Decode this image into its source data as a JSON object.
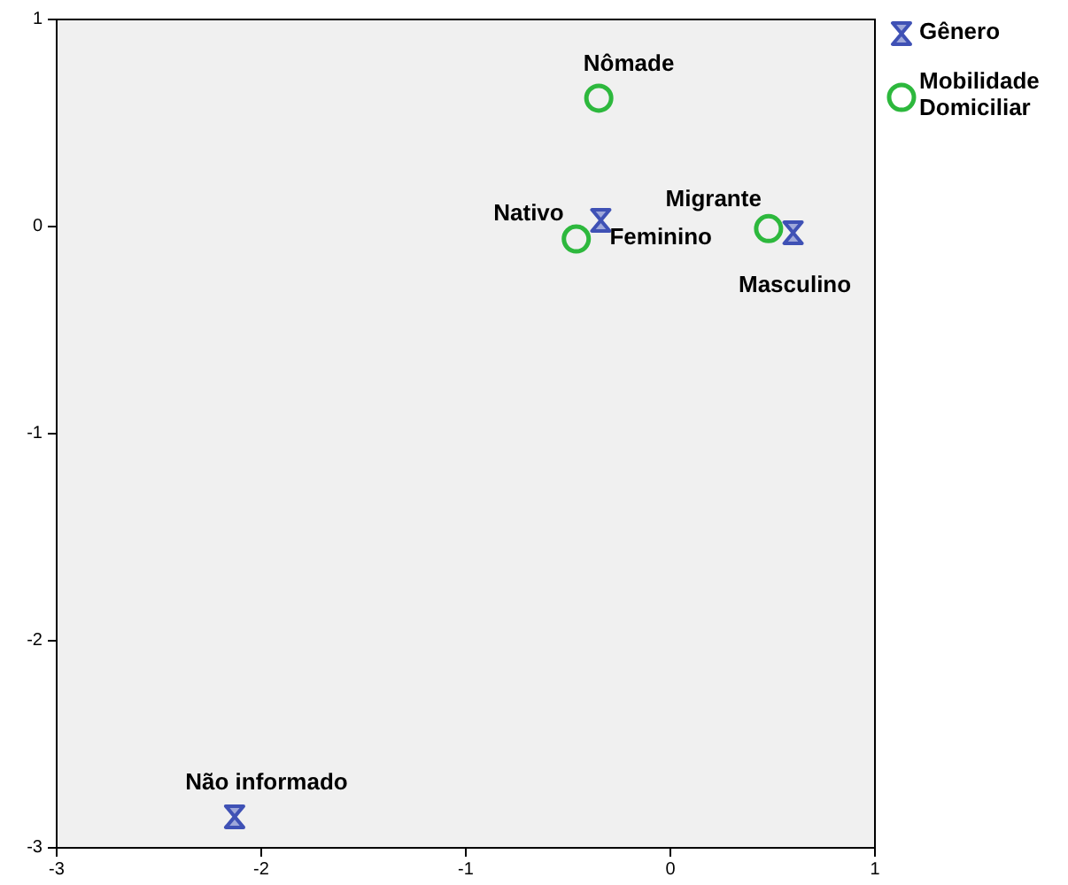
{
  "chart_data": {
    "type": "scatter",
    "xlim": [
      -3,
      1
    ],
    "ylim": [
      -3,
      1
    ],
    "xticks": [
      -3,
      -2,
      -1,
      0,
      1
    ],
    "yticks": [
      -3,
      -2,
      -1,
      0,
      1
    ],
    "grid": false,
    "legend": "top right",
    "series": [
      {
        "name": "Gênero",
        "color": "#3f51b5",
        "x": [
          -0.34,
          0.6,
          -2.13
        ],
        "values": [
          0.03,
          -0.03,
          -2.85
        ]
      },
      {
        "name": "Mobilidade Domiciliar",
        "color": "#2db83d",
        "marker": "circle",
        "x": [
          -0.35,
          -0.46,
          0.48
        ],
        "values": [
          0.62,
          -0.06,
          -0.01
        ]
      }
    ],
    "annotations": [
      {
        "text": "Nômade",
        "x": -0.35,
        "y": 0.62
      },
      {
        "text": "Nativo",
        "x": -0.46,
        "y": -0.06
      },
      {
        "text": "Feminino",
        "x": -0.34,
        "y": 0.03
      },
      {
        "text": "Migrante",
        "x": 0.48,
        "y": -0.01
      },
      {
        "text": "Masculino",
        "x": 0.6,
        "y": -0.03
      },
      {
        "text": "Não informado",
        "x": -2.13,
        "y": -2.85
      }
    ]
  }
}
